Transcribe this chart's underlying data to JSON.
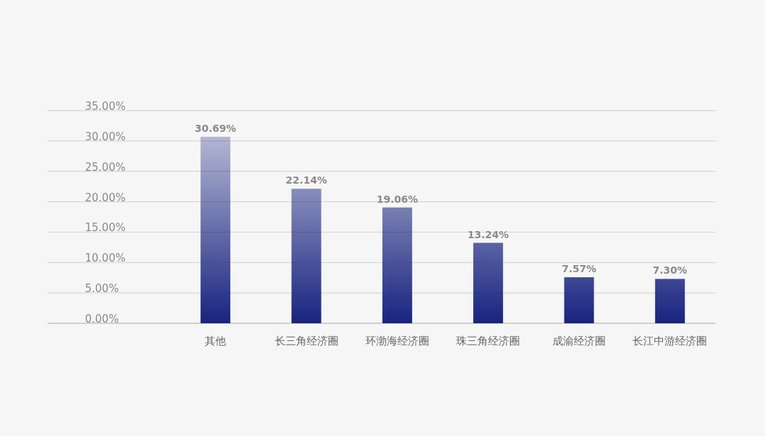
{
  "chart_data": {
    "type": "bar",
    "categories": [
      "其他",
      "长三角经济圈",
      "环渤海经济圈",
      "珠三角经济圈",
      "成渝经济圈",
      "长江中游经济圈"
    ],
    "values": [
      30.69,
      22.14,
      19.06,
      13.24,
      7.57,
      7.3
    ],
    "value_labels": [
      "30.69%",
      "22.14%",
      "19.06%",
      "13.24%",
      "7.57%",
      "7.30%"
    ],
    "color": "#18237f",
    "ylim": [
      0,
      35
    ],
    "yticks": [
      {
        "value": 0,
        "label": "0.00%"
      },
      {
        "value": 5,
        "label": "5.00%"
      },
      {
        "value": 10,
        "label": "10.00%"
      },
      {
        "value": 15,
        "label": "15.00%"
      },
      {
        "value": 20,
        "label": "20.00%"
      },
      {
        "value": 25,
        "label": "25.00%"
      },
      {
        "value": 30,
        "label": "30.00%"
      },
      {
        "value": 35,
        "label": "35.00%"
      }
    ],
    "grid": "y"
  }
}
